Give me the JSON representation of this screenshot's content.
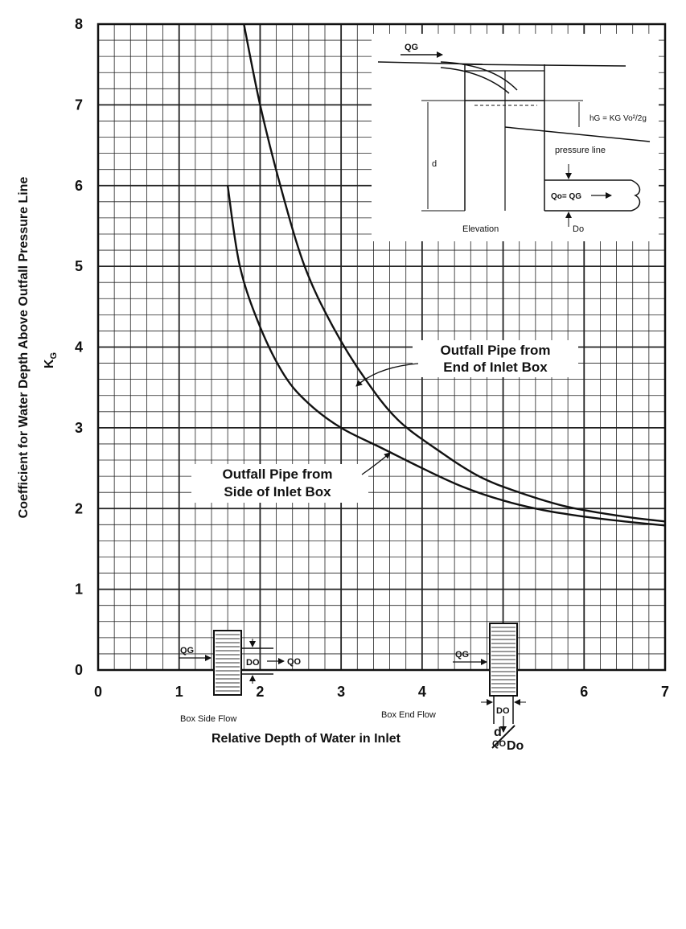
{
  "chart_data": {
    "type": "line",
    "title": "",
    "xlabel": "Relative Depth of Water in Inlet",
    "xlabel_fraction": {
      "numerator": "d",
      "denominator": "Do"
    },
    "ylabel": "Coefficient for Water Depth Above Outfall Pressure Line",
    "ylabel_symbol": "K",
    "ylabel_symbol_sub": "G",
    "xlim": [
      0,
      7
    ],
    "ylim": [
      0,
      8
    ],
    "x_ticks": [
      "0",
      "1",
      "2",
      "3",
      "4",
      "5",
      "6",
      "7"
    ],
    "y_ticks": [
      "0",
      "1",
      "2",
      "3",
      "4",
      "5",
      "6",
      "7",
      "8"
    ],
    "grid": true,
    "series": [
      {
        "name": "Outfall Pipe from End of Inlet Box",
        "label_line1": "Outfall Pipe from",
        "label_line2": "End of Inlet Box",
        "points": [
          [
            1.8,
            8.0
          ],
          [
            2.0,
            7.0
          ],
          [
            2.25,
            6.0
          ],
          [
            2.55,
            5.0
          ],
          [
            2.9,
            4.25
          ],
          [
            3.3,
            3.6
          ],
          [
            3.7,
            3.1
          ],
          [
            4.2,
            2.72
          ],
          [
            4.7,
            2.4
          ],
          [
            5.2,
            2.2
          ],
          [
            5.8,
            2.02
          ],
          [
            6.5,
            1.9
          ],
          [
            7.0,
            1.84
          ]
        ]
      },
      {
        "name": "Outfall Pipe from Side of Inlet Box",
        "label_line1": "Outfall Pipe from",
        "label_line2": "Side of Inlet Box",
        "points": [
          [
            1.6,
            6.0
          ],
          [
            1.75,
            5.0
          ],
          [
            2.0,
            4.25
          ],
          [
            2.3,
            3.65
          ],
          [
            2.6,
            3.3
          ],
          [
            3.0,
            3.0
          ],
          [
            3.5,
            2.75
          ],
          [
            4.0,
            2.5
          ],
          [
            4.5,
            2.27
          ],
          [
            5.0,
            2.1
          ],
          [
            5.5,
            1.98
          ],
          [
            6.0,
            1.9
          ],
          [
            6.5,
            1.84
          ],
          [
            7.0,
            1.79
          ]
        ]
      }
    ]
  },
  "inset": {
    "qg_label": "QG",
    "head_formula": "hG = KG Vo²/2g",
    "pressure_label": "pressure line",
    "depth_label": "d",
    "flow_label": "Qo= QG",
    "elevation_label": "Elevation",
    "diameter_label": "Do"
  },
  "diagrams": {
    "side": {
      "inflow": "QG",
      "diameter": "DO",
      "outflow": "QO",
      "caption": "Box Side Flow"
    },
    "end": {
      "inflow": "QG",
      "diameter": "DO",
      "outflow": "QO",
      "caption": "Box End Flow"
    }
  }
}
